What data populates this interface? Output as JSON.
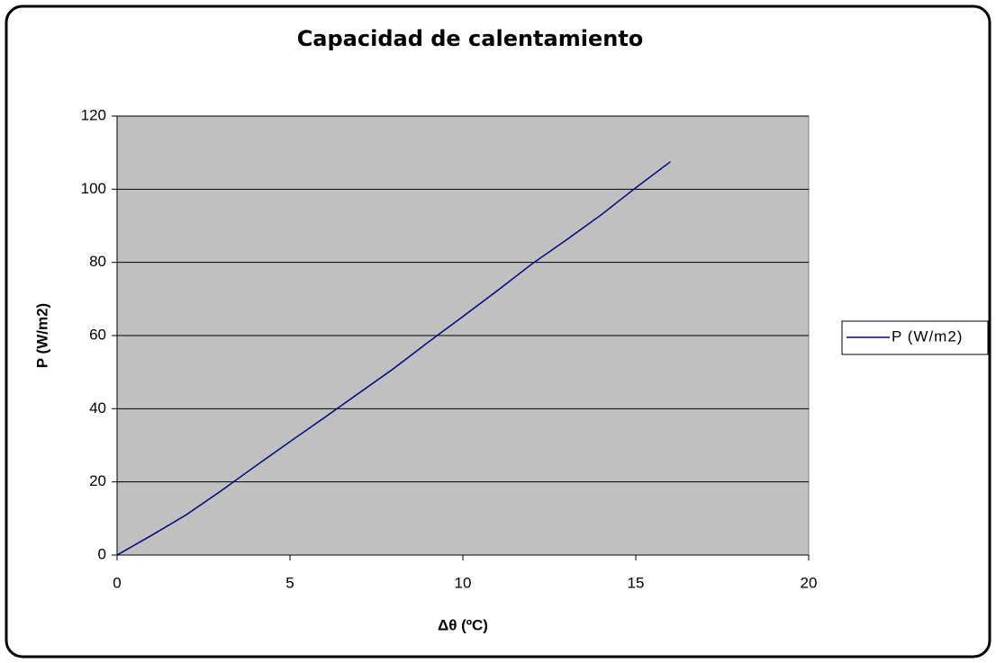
{
  "chart_data": {
    "type": "line",
    "title": "Capacidad de calentamiento",
    "x_label": "Δθ (ºC)",
    "y_label": "P (W/m2)",
    "x": [
      0,
      1,
      2,
      3,
      4,
      5,
      6,
      7,
      8,
      9,
      10,
      11,
      12,
      13,
      14,
      15,
      16
    ],
    "series": [
      {
        "name": "P (W/m2)",
        "color": "#000080",
        "values": [
          0,
          5.4,
          11,
          17.5,
          24.3,
          31,
          37.6,
          44.3,
          51,
          58.2,
          65.2,
          72.3,
          79.6,
          86.2,
          93,
          100.4,
          107.5
        ]
      }
    ],
    "xlim": [
      0,
      20
    ],
    "xticks": [
      0,
      5,
      10,
      15,
      20
    ],
    "ylim": [
      0,
      120
    ],
    "yticks": [
      0,
      20,
      40,
      60,
      80,
      100,
      120
    ],
    "grid": true,
    "legend": "right",
    "plot_background": "#c0c0c0"
  }
}
